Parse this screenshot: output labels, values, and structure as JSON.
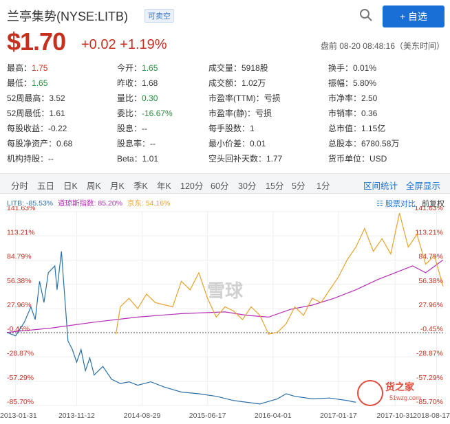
{
  "header": {
    "title": "兰亭集势(NYSE:LITB)",
    "tag": "可卖空",
    "add_label": "+ 自选"
  },
  "quote": {
    "price": "$1.70",
    "change": "+0.02 +1.19%",
    "time": "盘前 08-20 08:48:16（美东时间）"
  },
  "stats": [
    [
      "最高：",
      "1.75",
      "今开：",
      "1.65",
      "成交量：5918股",
      "",
      "换手：0.01%",
      ""
    ],
    [
      "最低：",
      "1.65",
      "昨收：1.68",
      "",
      "成交额：1.02万",
      "",
      "振幅：5.80%",
      ""
    ],
    [
      "52周最高：3.52",
      "",
      "量比：",
      "0.30",
      "市盈率(TTM)：亏损",
      "",
      "市净率：2.50",
      ""
    ],
    [
      "52周最低：1.61",
      "",
      "委比：",
      "-16.67%",
      "市盈率(静)：亏损",
      "",
      "市销率：0.36",
      ""
    ],
    [
      "每股收益：-0.22",
      "",
      "股息：--",
      "",
      "每手股数：1",
      "",
      "总市值：1.15亿",
      ""
    ],
    [
      "每股净资产：0.68",
      "",
      "股息率：--",
      "",
      "最小价差：0.01",
      "",
      "总股本：6780.58万",
      ""
    ],
    [
      "机构持股：--",
      "",
      "Beta：1.01",
      "",
      "空头回补天数：1.77",
      "",
      "货币单位：USD",
      ""
    ]
  ],
  "tabs": [
    "分时",
    "五日",
    "日K",
    "周K",
    "月K",
    "季K",
    "年K",
    "120分",
    "60分",
    "30分",
    "15分",
    "5分",
    "1分"
  ],
  "tab_right": [
    "区间统计",
    "全屏显示"
  ],
  "legend": {
    "litb": "LITB: -85.53%",
    "dji": "道琼斯指数: 85.20%",
    "jd": "京东: 54.16%",
    "compare": "股票对比",
    "adjust": "前复权"
  },
  "colors": {
    "litb": "#2b6fa8",
    "dji": "#b52fb5",
    "jd": "#e8a12a",
    "red": "#c6301f",
    "green": "#1d8f3a"
  },
  "chart_data": {
    "type": "line",
    "y_ticks": [
      "141.63%",
      "113.21%",
      "84.79%",
      "56.38%",
      "27.96%",
      "-0.45%",
      "-28.87%",
      "-57.29%",
      "-85.70%"
    ],
    "y_values": [
      141.63,
      113.21,
      84.79,
      56.38,
      27.96,
      -0.45,
      -28.87,
      -57.29,
      -85.7
    ],
    "ylim": [
      -85.7,
      141.63
    ],
    "x_ticks": [
      "2013-01-31",
      "2013-11-12",
      "2014-08-29",
      "2015-06-17",
      "2016-04-01",
      "2017-01-17",
      "2017-10-31",
      "2018-08-17"
    ],
    "series": [
      {
        "name": "LITB",
        "color": "#2b6fa8",
        "values": [
          [
            0,
            0
          ],
          [
            0.02,
            -4
          ],
          [
            0.04,
            12
          ],
          [
            0.055,
            30
          ],
          [
            0.065,
            15
          ],
          [
            0.075,
            60
          ],
          [
            0.085,
            35
          ],
          [
            0.095,
            70
          ],
          [
            0.11,
            78
          ],
          [
            0.115,
            50
          ],
          [
            0.125,
            95
          ],
          [
            0.13,
            60
          ],
          [
            0.14,
            -10
          ],
          [
            0.15,
            -20
          ],
          [
            0.16,
            -35
          ],
          [
            0.17,
            -20
          ],
          [
            0.18,
            -45
          ],
          [
            0.19,
            -30
          ],
          [
            0.2,
            -50
          ],
          [
            0.22,
            -40
          ],
          [
            0.24,
            -55
          ],
          [
            0.26,
            -60
          ],
          [
            0.28,
            -58
          ],
          [
            0.3,
            -62
          ],
          [
            0.33,
            -58
          ],
          [
            0.36,
            -64
          ],
          [
            0.4,
            -70
          ],
          [
            0.44,
            -72
          ],
          [
            0.48,
            -75
          ],
          [
            0.52,
            -80
          ],
          [
            0.55,
            -82
          ],
          [
            0.58,
            -84
          ],
          [
            0.62,
            -78
          ],
          [
            0.64,
            -72
          ],
          [
            0.66,
            -75
          ],
          [
            0.7,
            -78
          ],
          [
            0.74,
            -77
          ],
          [
            0.78,
            -80
          ],
          [
            0.8,
            -82
          ]
        ]
      },
      {
        "name": "道琼斯指数",
        "color": "#b52fb5",
        "values": [
          [
            0,
            0
          ],
          [
            0.1,
            5
          ],
          [
            0.2,
            12
          ],
          [
            0.3,
            18
          ],
          [
            0.4,
            22
          ],
          [
            0.5,
            24
          ],
          [
            0.55,
            20
          ],
          [
            0.6,
            18
          ],
          [
            0.65,
            27
          ],
          [
            0.7,
            32
          ],
          [
            0.75,
            40
          ],
          [
            0.8,
            50
          ],
          [
            0.85,
            62
          ],
          [
            0.9,
            72
          ],
          [
            0.93,
            78
          ],
          [
            0.96,
            70
          ],
          [
            1.0,
            85
          ]
        ]
      },
      {
        "name": "京东",
        "color": "#e8a12a",
        "values": [
          [
            0.25,
            -2
          ],
          [
            0.26,
            30
          ],
          [
            0.28,
            40
          ],
          [
            0.3,
            28
          ],
          [
            0.32,
            45
          ],
          [
            0.34,
            35
          ],
          [
            0.38,
            30
          ],
          [
            0.4,
            60
          ],
          [
            0.42,
            50
          ],
          [
            0.44,
            70
          ],
          [
            0.46,
            40
          ],
          [
            0.48,
            18
          ],
          [
            0.5,
            30
          ],
          [
            0.52,
            25
          ],
          [
            0.54,
            15
          ],
          [
            0.56,
            30
          ],
          [
            0.58,
            20
          ],
          [
            0.6,
            -2
          ],
          [
            0.62,
            0
          ],
          [
            0.64,
            10
          ],
          [
            0.66,
            30
          ],
          [
            0.68,
            20
          ],
          [
            0.7,
            40
          ],
          [
            0.72,
            35
          ],
          [
            0.74,
            50
          ],
          [
            0.76,
            65
          ],
          [
            0.78,
            85
          ],
          [
            0.8,
            100
          ],
          [
            0.82,
            122
          ],
          [
            0.84,
            95
          ],
          [
            0.86,
            110
          ],
          [
            0.88,
            92
          ],
          [
            0.9,
            140
          ],
          [
            0.92,
            100
          ],
          [
            0.94,
            115
          ],
          [
            0.96,
            80
          ],
          [
            0.98,
            90
          ],
          [
            1.0,
            54
          ]
        ]
      }
    ]
  },
  "watermark": {
    "center": "雪球",
    "brand": "货之家",
    "brand_url": "51wzg.com"
  }
}
